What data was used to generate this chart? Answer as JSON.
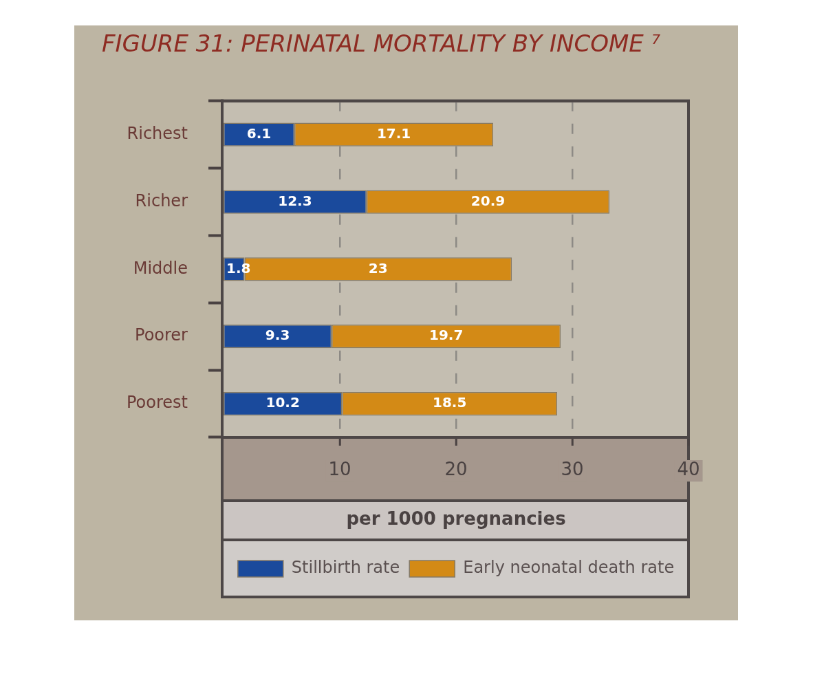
{
  "chart_data": {
    "type": "bar",
    "orientation": "horizontal",
    "stacked": true,
    "title": "FIGURE 31: PERINATAL MORTALITY BY INCOME ⁷",
    "categories": [
      "Richest",
      "Richer",
      "Middle",
      "Poorer",
      "Poorest"
    ],
    "series": [
      {
        "name": "Stillbirth rate",
        "color": "#1a4a9c",
        "values": [
          6.1,
          12.3,
          1.8,
          9.3,
          10.2
        ]
      },
      {
        "name": "Early neonatal death rate",
        "color": "#d38a16",
        "values": [
          17.1,
          20.9,
          23,
          19.7,
          18.5
        ]
      }
    ],
    "xlabel": "per 1000 pregnancies",
    "xlim": [
      0,
      40
    ],
    "xticks": [
      10,
      20,
      30,
      40
    ],
    "grid": "x",
    "legend": "bottom",
    "data_labels": true
  }
}
